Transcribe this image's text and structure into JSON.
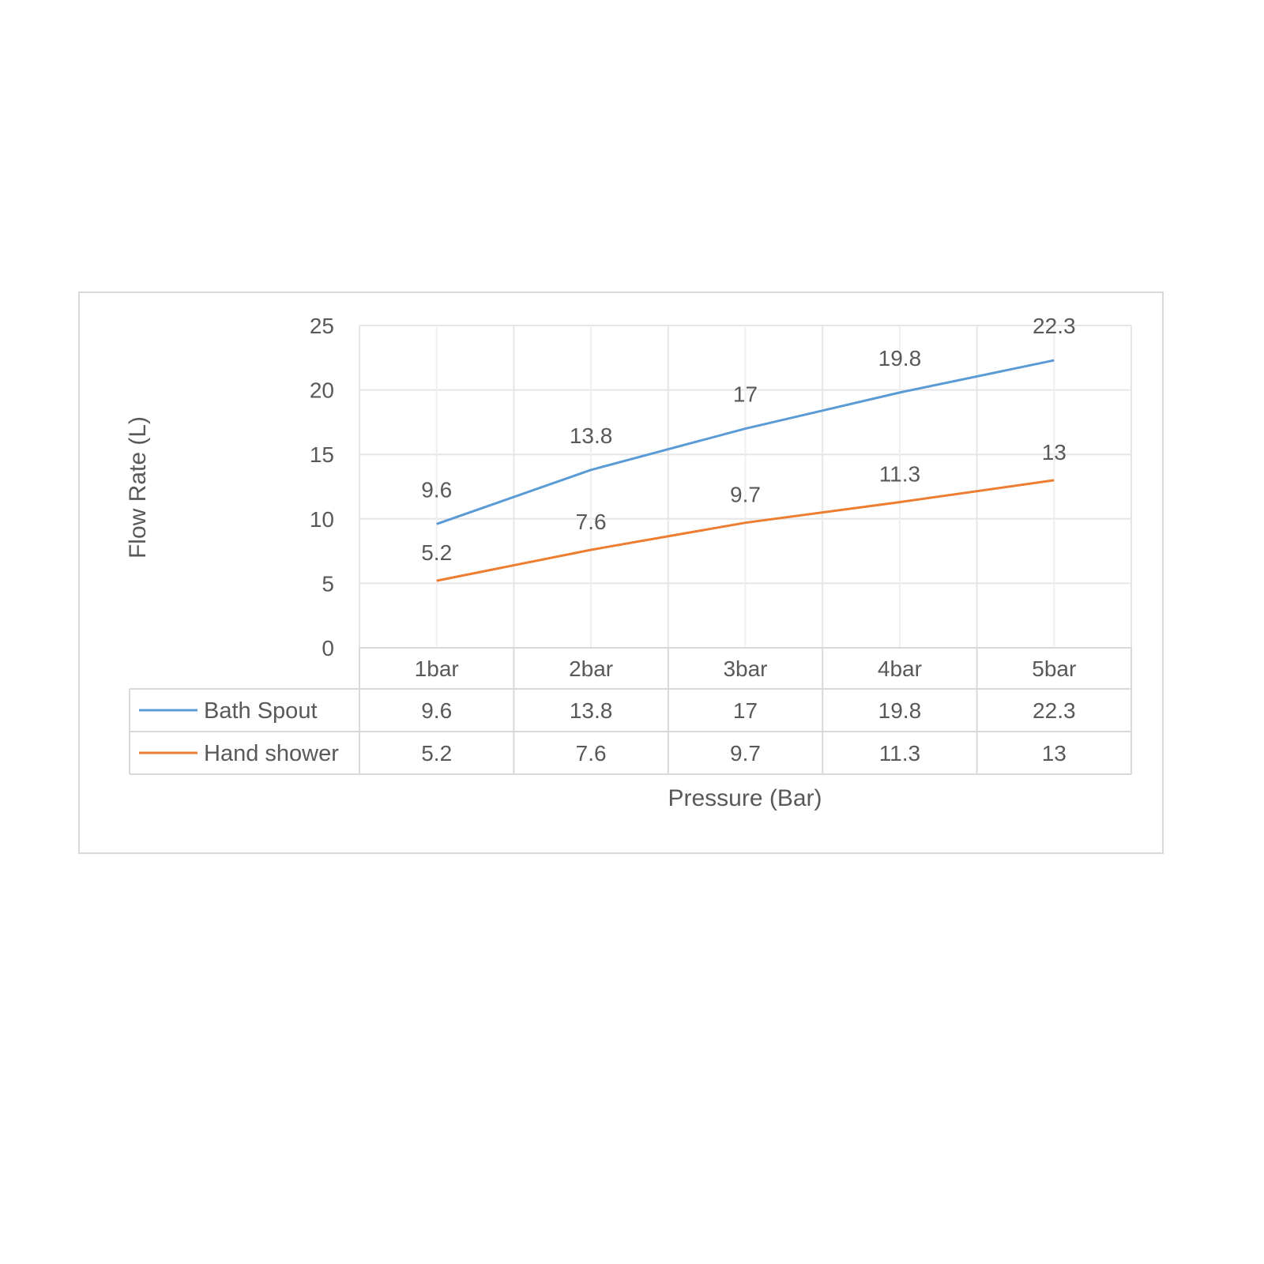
{
  "chart_data": {
    "type": "line",
    "title": "",
    "xlabel": "Pressure (Bar)",
    "ylabel": "Flow Rate (L)",
    "categories": [
      "1bar",
      "2bar",
      "3bar",
      "4bar",
      "5bar"
    ],
    "ylim": [
      0,
      25
    ],
    "yticks": [
      0,
      5,
      10,
      15,
      20,
      25
    ],
    "grid": true,
    "legend": "data-table",
    "series": [
      {
        "name": "Bath Spout",
        "color": "#5b9bd5",
        "values": [
          9.6,
          13.8,
          17,
          19.8,
          22.3
        ]
      },
      {
        "name": "Hand shower",
        "color": "#ed7d31",
        "values": [
          5.2,
          7.6,
          9.7,
          11.3,
          13
        ]
      }
    ]
  }
}
